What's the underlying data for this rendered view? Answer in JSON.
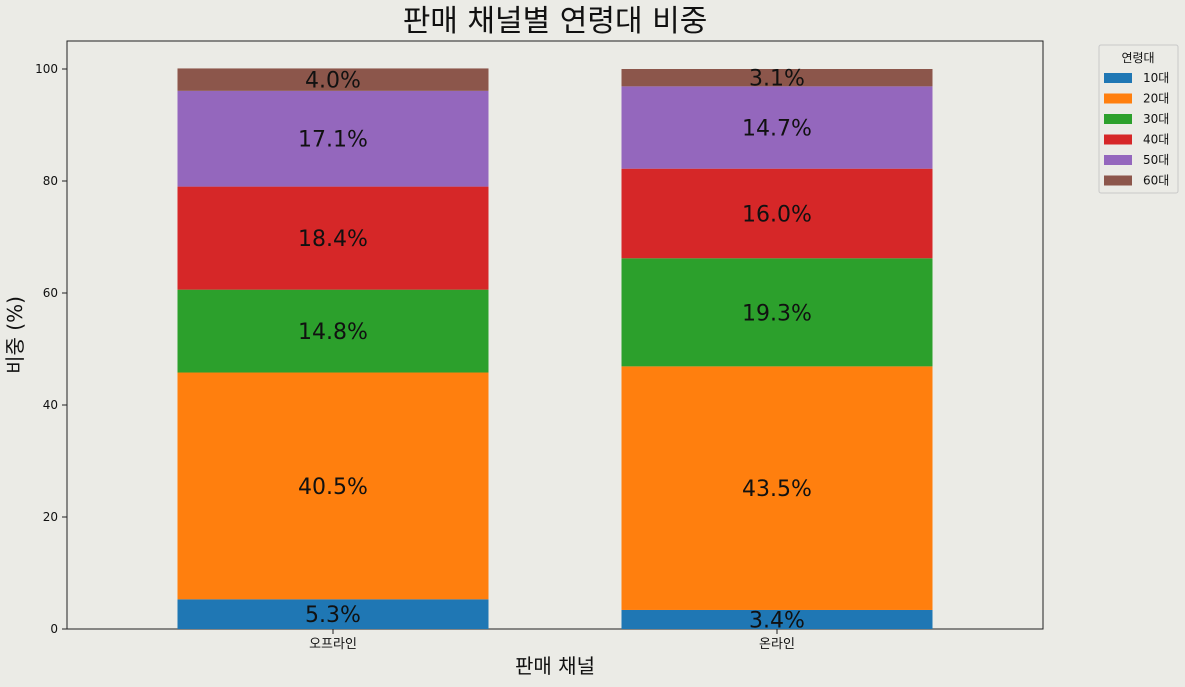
{
  "chart_data": {
    "type": "bar",
    "stacked": true,
    "title": "판매 채널별 연령대 비중",
    "xlabel": "판매 채널",
    "ylabel": "비중 (%)",
    "categories": [
      "오프라인",
      "온라인"
    ],
    "ylim": [
      0,
      105
    ],
    "yticks": [
      0,
      20,
      40,
      60,
      80,
      100
    ],
    "legend_title": "연령대",
    "legend_position": "outside-top-right",
    "grid": false,
    "series": [
      {
        "name": "10대",
        "color": "#1f77b4",
        "values": [
          5.3,
          3.4
        ],
        "labels": [
          "5.3%",
          "3.4%"
        ]
      },
      {
        "name": "20대",
        "color": "#ff7f0e",
        "values": [
          40.5,
          43.5
        ],
        "labels": [
          "40.5%",
          "43.5%"
        ]
      },
      {
        "name": "30대",
        "color": "#2ca02c",
        "values": [
          14.8,
          19.3
        ],
        "labels": [
          "14.8%",
          "19.3%"
        ]
      },
      {
        "name": "40대",
        "color": "#d62728",
        "values": [
          18.4,
          16.0
        ],
        "labels": [
          "18.4%",
          "16.0%"
        ]
      },
      {
        "name": "50대",
        "color": "#9467bd",
        "values": [
          17.1,
          14.7
        ],
        "labels": [
          "17.1%",
          "14.7%"
        ]
      },
      {
        "name": "60대",
        "color": "#8c564b",
        "values": [
          4.0,
          3.1
        ],
        "labels": [
          "4.0%",
          "3.1%"
        ]
      }
    ]
  }
}
